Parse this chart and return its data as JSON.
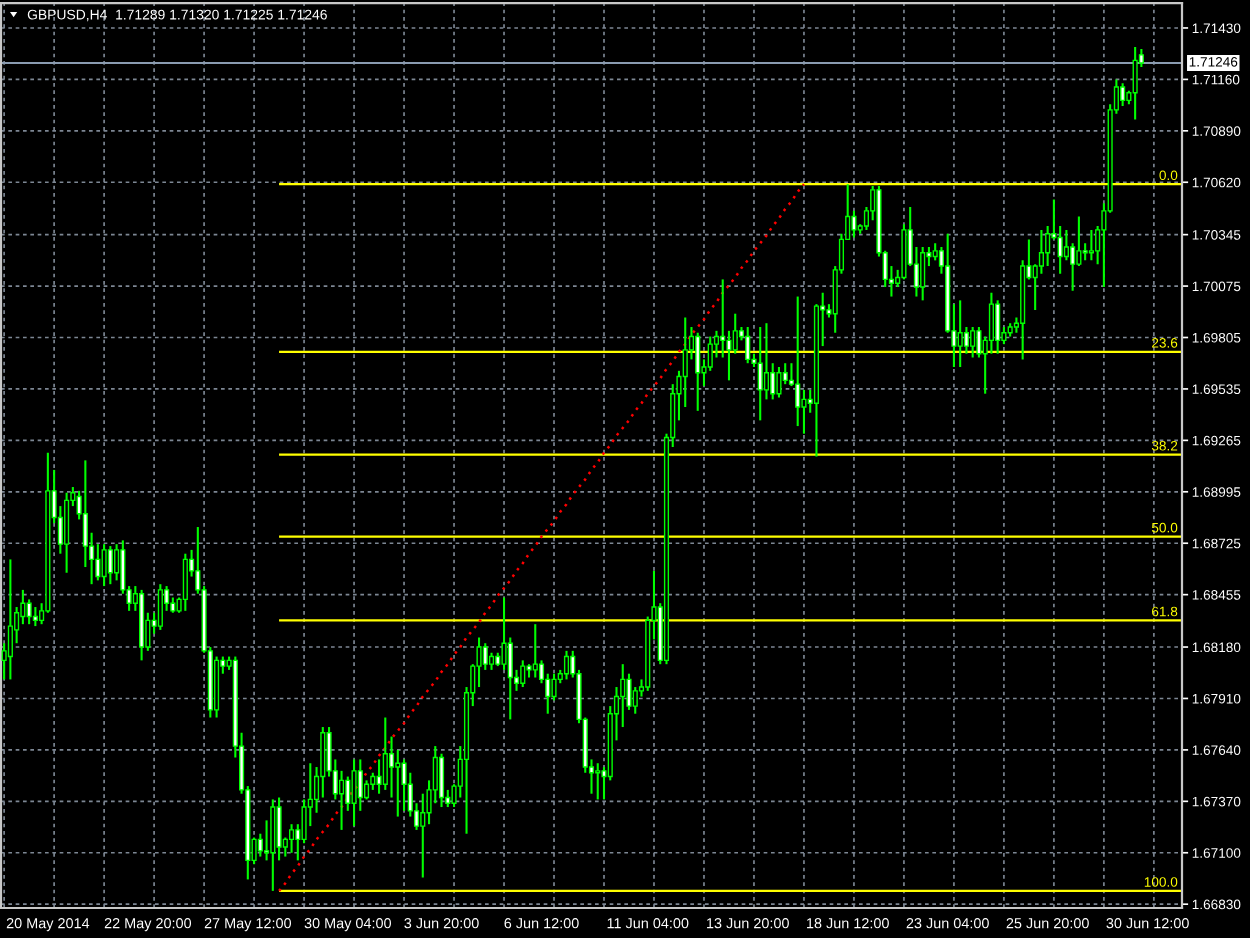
{
  "chart_data": {
    "type": "candlestick",
    "title": "GBPUSD,H4  1.71289 1.71320 1.71225 1.71246",
    "color": "#00ff00",
    "categories": [
      null,
      null,
      null,
      null,
      null,
      null,
      null,
      "20 May 2014",
      null,
      null,
      null,
      null,
      null,
      null,
      null,
      null,
      null,
      null,
      null,
      null,
      null,
      null,
      null,
      "22 May 20:00",
      null,
      null,
      null,
      null,
      null,
      null,
      null,
      null,
      null,
      null,
      null,
      null,
      null,
      null,
      null,
      "27 May 12:00",
      null,
      null,
      null,
      null,
      null,
      null,
      null,
      null,
      null,
      null,
      null,
      null,
      null,
      null,
      null,
      "30 May 04:00",
      null,
      null,
      null,
      null,
      null,
      null,
      null,
      null,
      null,
      null,
      null,
      null,
      null,
      null,
      "3 Jun 20:00",
      null,
      null,
      null,
      null,
      null,
      null,
      null,
      null,
      null,
      null,
      null,
      null,
      null,
      null,
      null,
      "6 Jun 12:00",
      null,
      null,
      null,
      null,
      null,
      null,
      null,
      null,
      null,
      null,
      null,
      null,
      null,
      null,
      null,
      null,
      "11 Jun 04:00",
      null,
      null,
      null,
      null,
      null,
      null,
      null,
      null,
      null,
      null,
      null,
      null,
      null,
      null,
      null,
      "13 Jun 20:00",
      null,
      null,
      null,
      null,
      null,
      null,
      null,
      null,
      null,
      null,
      null,
      null,
      null,
      null,
      null,
      "18 Jun 12:00",
      null,
      null,
      null,
      null,
      null,
      null,
      null,
      null,
      null,
      null,
      null,
      null,
      null,
      null,
      null,
      "23 Jun 04:00",
      null,
      null,
      null,
      null,
      null,
      null,
      null,
      null,
      null,
      null,
      null,
      null,
      null,
      null,
      null,
      "25 Jun 20:00",
      null,
      null,
      null,
      null,
      null,
      null,
      null,
      null,
      null,
      null,
      null,
      null,
      null,
      null,
      null,
      "30 Jun 12:00",
      null,
      null,
      null,
      null,
      null
    ],
    "ohlc": [
      [
        1.6811,
        1.682,
        1.6801,
        1.6816
      ],
      [
        1.6813,
        1.6864,
        1.6801,
        1.6829
      ],
      [
        1.6827,
        1.6839,
        1.682,
        1.6836
      ],
      [
        1.6834,
        1.6848,
        1.683,
        1.6841
      ],
      [
        1.6841,
        1.6843,
        1.683,
        1.6834
      ],
      [
        1.6834,
        1.6839,
        1.6829,
        1.6832
      ],
      [
        1.6832,
        1.6841,
        1.683,
        1.6837
      ],
      [
        1.6837,
        1.692,
        1.6836,
        1.69
      ],
      [
        1.69,
        1.6911,
        1.6883,
        1.6886
      ],
      [
        1.6886,
        1.6892,
        1.6867,
        1.6872
      ],
      [
        1.6872,
        1.6899,
        1.6857,
        1.6895
      ],
      [
        1.6895,
        1.6902,
        1.6892,
        1.6899
      ],
      [
        1.6897,
        1.69,
        1.6885,
        1.6888
      ],
      [
        1.6888,
        1.6916,
        1.686,
        1.6871
      ],
      [
        1.6871,
        1.6878,
        1.6851,
        1.6864
      ],
      [
        1.6864,
        1.6872,
        1.6853,
        1.6855
      ],
      [
        1.6855,
        1.6872,
        1.685,
        1.6869
      ],
      [
        1.6869,
        1.6871,
        1.6851,
        1.6857
      ],
      [
        1.6857,
        1.6872,
        1.6853,
        1.6869
      ],
      [
        1.6869,
        1.6874,
        1.6846,
        1.6848
      ],
      [
        1.6848,
        1.685,
        1.6837,
        1.6841
      ],
      [
        1.6841,
        1.685,
        1.6837,
        1.6846
      ],
      [
        1.6846,
        1.6848,
        1.6811,
        1.6818
      ],
      [
        1.6818,
        1.6836,
        1.6816,
        1.6832
      ],
      [
        1.6832,
        1.6836,
        1.6825,
        1.6829
      ],
      [
        1.6829,
        1.6851,
        1.6827,
        1.6848
      ],
      [
        1.6848,
        1.685,
        1.6837,
        1.6841
      ],
      [
        1.6841,
        1.6844,
        1.6836,
        1.6837
      ],
      [
        1.6837,
        1.6844,
        1.6836,
        1.6843
      ],
      [
        1.6843,
        1.6867,
        1.6837,
        1.6864
      ],
      [
        1.6864,
        1.6869,
        1.6855,
        1.6858
      ],
      [
        1.6858,
        1.6881,
        1.6846,
        1.6848
      ],
      [
        1.6848,
        1.685,
        1.6815,
        1.6816
      ],
      [
        1.6816,
        1.6818,
        1.6781,
        1.6785
      ],
      [
        1.6785,
        1.6813,
        1.6781,
        1.6811
      ],
      [
        1.6811,
        1.6813,
        1.6804,
        1.6808
      ],
      [
        1.6808,
        1.6813,
        1.6806,
        1.6811
      ],
      [
        1.6811,
        1.6813,
        1.676,
        1.6766
      ],
      [
        1.6766,
        1.6773,
        1.6741,
        1.6743
      ],
      [
        1.6743,
        1.6745,
        1.6696,
        1.6706
      ],
      [
        1.6706,
        1.6718,
        1.6704,
        1.6717
      ],
      [
        1.6717,
        1.672,
        1.6708,
        1.6711
      ],
      [
        1.6711,
        1.6727,
        1.6706,
        1.671
      ],
      [
        1.671,
        1.6738,
        1.669,
        1.6734
      ],
      [
        1.6734,
        1.6739,
        1.6706,
        1.6713
      ],
      [
        1.6713,
        1.6718,
        1.6708,
        1.6717
      ],
      [
        1.6717,
        1.6725,
        1.671,
        1.6722
      ],
      [
        1.6722,
        1.6725,
        1.6706,
        1.6717
      ],
      [
        1.6717,
        1.6738,
        1.6715,
        1.6734
      ],
      [
        1.6734,
        1.6757,
        1.6724,
        1.6738
      ],
      [
        1.6738,
        1.6755,
        1.6731,
        1.675
      ],
      [
        1.675,
        1.6776,
        1.6739,
        1.6773
      ],
      [
        1.6773,
        1.6776,
        1.675,
        1.6753
      ],
      [
        1.6753,
        1.6759,
        1.6738,
        1.6741
      ],
      [
        1.6741,
        1.6753,
        1.6722,
        1.6748
      ],
      [
        1.6748,
        1.675,
        1.6732,
        1.6736
      ],
      [
        1.6736,
        1.6759,
        1.6724,
        1.6753
      ],
      [
        1.6753,
        1.6759,
        1.6732,
        1.6739
      ],
      [
        1.6739,
        1.6748,
        1.6738,
        1.6746
      ],
      [
        1.6746,
        1.6752,
        1.6743,
        1.675
      ],
      [
        1.675,
        1.6759,
        1.6741,
        1.6746
      ],
      [
        1.6746,
        1.6781,
        1.6743,
        1.6762
      ],
      [
        1.6762,
        1.6771,
        1.6739,
        1.6755
      ],
      [
        1.6755,
        1.6764,
        1.6729,
        1.6757
      ],
      [
        1.6757,
        1.6759,
        1.6732,
        1.6746
      ],
      [
        1.6746,
        1.6752,
        1.6729,
        1.6732
      ],
      [
        1.6732,
        1.6736,
        1.6722,
        1.6724
      ],
      [
        1.6724,
        1.6741,
        1.6697,
        1.6731
      ],
      [
        1.6731,
        1.6748,
        1.6725,
        1.6743
      ],
      [
        1.6743,
        1.6766,
        1.6736,
        1.676
      ],
      [
        1.676,
        1.6762,
        1.6734,
        1.6739
      ],
      [
        1.6739,
        1.6743,
        1.6734,
        1.6736
      ],
      [
        1.6736,
        1.6746,
        1.6734,
        1.6745
      ],
      [
        1.6745,
        1.6766,
        1.6739,
        1.6759
      ],
      [
        1.6759,
        1.6797,
        1.672,
        1.6794
      ],
      [
        1.6794,
        1.6809,
        1.6787,
        1.6808
      ],
      [
        1.6808,
        1.6823,
        1.6797,
        1.6818
      ],
      [
        1.6818,
        1.682,
        1.6806,
        1.6809
      ],
      [
        1.6809,
        1.6815,
        1.6806,
        1.6813
      ],
      [
        1.6813,
        1.6815,
        1.6808,
        1.6809
      ],
      [
        1.6809,
        1.6844,
        1.6806,
        1.682
      ],
      [
        1.682,
        1.6823,
        1.678,
        1.6802
      ],
      [
        1.6802,
        1.6806,
        1.6795,
        1.6799
      ],
      [
        1.6799,
        1.6811,
        1.6797,
        1.6808
      ],
      [
        1.6808,
        1.6809,
        1.6802,
        1.6806
      ],
      [
        1.6806,
        1.683,
        1.6802,
        1.6809
      ],
      [
        1.6809,
        1.6811,
        1.6799,
        1.6801
      ],
      [
        1.6801,
        1.6804,
        1.6783,
        1.6792
      ],
      [
        1.6792,
        1.6804,
        1.679,
        1.6801
      ],
      [
        1.6801,
        1.6806,
        1.6799,
        1.6804
      ],
      [
        1.6804,
        1.6816,
        1.6801,
        1.6813
      ],
      [
        1.6813,
        1.6816,
        1.6802,
        1.6804
      ],
      [
        1.6804,
        1.6806,
        1.6778,
        1.678
      ],
      [
        1.678,
        1.6781,
        1.6752,
        1.6755
      ],
      [
        1.6755,
        1.6759,
        1.6741,
        1.6752
      ],
      [
        1.6752,
        1.6757,
        1.6738,
        1.6753
      ],
      [
        1.6753,
        1.6755,
        1.6738,
        1.675
      ],
      [
        1.675,
        1.6787,
        1.6748,
        1.6783
      ],
      [
        1.6783,
        1.6797,
        1.6769,
        1.6792
      ],
      [
        1.6792,
        1.6809,
        1.6776,
        1.6801
      ],
      [
        1.6801,
        1.6804,
        1.6785,
        1.6787
      ],
      [
        1.6787,
        1.6797,
        1.6783,
        1.6795
      ],
      [
        1.6795,
        1.6801,
        1.6792,
        1.6797
      ],
      [
        1.6797,
        1.6834,
        1.6795,
        1.6832
      ],
      [
        1.6832,
        1.6858,
        1.6822,
        1.6839
      ],
      [
        1.6839,
        1.6841,
        1.6809,
        1.6811
      ],
      [
        1.6811,
        1.693,
        1.6809,
        1.6928
      ],
      [
        1.6928,
        1.6956,
        1.6923,
        1.6951
      ],
      [
        1.6951,
        1.6963,
        1.6937,
        1.696
      ],
      [
        1.696,
        1.6991,
        1.6944,
        1.6974
      ],
      [
        1.6974,
        1.6986,
        1.6969,
        1.6981
      ],
      [
        1.6981,
        1.6983,
        1.6942,
        1.6962
      ],
      [
        1.6962,
        1.6969,
        1.6955,
        1.6965
      ],
      [
        1.6965,
        1.6981,
        1.6963,
        1.6977
      ],
      [
        1.6977,
        1.6984,
        1.697,
        1.6981
      ],
      [
        1.6981,
        1.7011,
        1.697,
        1.6979
      ],
      [
        1.6979,
        1.6984,
        1.6958,
        1.6974
      ],
      [
        1.6974,
        1.6993,
        1.6972,
        1.6984
      ],
      [
        1.6984,
        1.6986,
        1.6979,
        1.6981
      ],
      [
        1.6981,
        1.6986,
        1.6967,
        1.6969
      ],
      [
        1.6969,
        1.6972,
        1.6965,
        1.6967
      ],
      [
        1.6967,
        1.6986,
        1.6937,
        1.6953
      ],
      [
        1.6953,
        1.6988,
        1.6948,
        1.6962
      ],
      [
        1.6962,
        1.6967,
        1.6948,
        1.6951
      ],
      [
        1.6951,
        1.6965,
        1.6949,
        1.6962
      ],
      [
        1.6962,
        1.6967,
        1.6956,
        1.6958
      ],
      [
        1.6958,
        1.6967,
        1.6955,
        1.6956
      ],
      [
        1.6956,
        1.7002,
        1.6934,
        1.6944
      ],
      [
        1.6944,
        1.6953,
        1.693,
        1.6948
      ],
      [
        1.6948,
        1.6953,
        1.6941,
        1.6946
      ],
      [
        1.6946,
        1.6998,
        1.6918,
        1.6997
      ],
      [
        1.6997,
        1.7004,
        1.6976,
        1.6995
      ],
      [
        1.6995,
        1.6998,
        1.6991,
        1.6993
      ],
      [
        1.6993,
        1.7018,
        1.6983,
        1.7016
      ],
      [
        1.7016,
        1.7035,
        1.7014,
        1.7032
      ],
      [
        1.7032,
        1.7061,
        1.7032,
        1.7044
      ],
      [
        1.7044,
        1.7047,
        1.7033,
        1.7037
      ],
      [
        1.7037,
        1.704,
        1.7035,
        1.7039
      ],
      [
        1.7039,
        1.7049,
        1.7037,
        1.7047
      ],
      [
        1.7047,
        1.706,
        1.7042,
        1.7058
      ],
      [
        1.7058,
        1.706,
        1.7023,
        1.7025
      ],
      [
        1.7025,
        1.7026,
        1.7007,
        1.7011
      ],
      [
        1.7011,
        1.7018,
        1.7002,
        1.7009
      ],
      [
        1.7009,
        1.7016,
        1.7007,
        1.7012
      ],
      [
        1.7012,
        1.704,
        1.7011,
        1.7037
      ],
      [
        1.7037,
        1.7049,
        1.7018,
        1.7019
      ],
      [
        1.7019,
        1.7028,
        1.7002,
        1.7007
      ],
      [
        1.7007,
        1.7028,
        1.7,
        1.7025
      ],
      [
        1.7025,
        1.7028,
        1.7018,
        1.7023
      ],
      [
        1.7023,
        1.703,
        1.7021,
        1.7026
      ],
      [
        1.7026,
        1.7028,
        1.7014,
        1.7018
      ],
      [
        1.7018,
        1.7035,
        1.6983,
        1.6984
      ],
      [
        1.6984,
        1.6998,
        1.6965,
        1.6976
      ],
      [
        1.6976,
        1.7,
        1.6965,
        1.6983
      ],
      [
        1.6983,
        1.6986,
        1.6972,
        1.6976
      ],
      [
        1.6976,
        1.6986,
        1.697,
        1.6984
      ],
      [
        1.6984,
        1.6986,
        1.697,
        1.6972
      ],
      [
        1.6972,
        1.6981,
        1.6951,
        1.6979
      ],
      [
        1.6979,
        1.7004,
        1.6972,
        1.6998
      ],
      [
        1.6998,
        1.7,
        1.6972,
        1.6979
      ],
      [
        1.6979,
        1.6986,
        1.6977,
        1.6983
      ],
      [
        1.6983,
        1.6988,
        1.6981,
        1.6986
      ],
      [
        1.6986,
        1.6991,
        1.6983,
        1.6988
      ],
      [
        1.6988,
        1.7021,
        1.6969,
        1.7018
      ],
      [
        1.7018,
        1.7032,
        1.7011,
        1.7012
      ],
      [
        1.7012,
        1.7019,
        1.6995,
        1.7018
      ],
      [
        1.7018,
        1.7037,
        1.7014,
        1.7025
      ],
      [
        1.7025,
        1.7039,
        1.7018,
        1.7035
      ],
      [
        1.7035,
        1.7053,
        1.7032,
        1.7033
      ],
      [
        1.7033,
        1.7039,
        1.7014,
        1.7023
      ],
      [
        1.7023,
        1.7037,
        1.7021,
        1.7028
      ],
      [
        1.7028,
        1.703,
        1.7005,
        1.7019
      ],
      [
        1.7019,
        1.7044,
        1.7018,
        1.7026
      ],
      [
        1.7026,
        1.703,
        1.7021,
        1.7025
      ],
      [
        1.7025,
        1.7037,
        1.7021,
        1.7026
      ],
      [
        1.7026,
        1.7039,
        1.7019,
        1.7037
      ],
      [
        1.7037,
        1.7051,
        1.7007,
        1.7047
      ],
      [
        1.7047,
        1.7103,
        1.7046,
        1.71
      ],
      [
        1.71,
        1.7116,
        1.7098,
        1.7112
      ],
      [
        1.7112,
        1.7114,
        1.7102,
        1.7105
      ],
      [
        1.7105,
        1.711,
        1.7103,
        1.7109
      ],
      [
        1.7109,
        1.7133,
        1.7095,
        1.7126
      ],
      [
        1.71289,
        1.7132,
        1.71225,
        1.71246
      ],
      null,
      null,
      null,
      null,
      null,
      null
    ],
    "series": [
      {
        "type": "line",
        "color": "#ff0000",
        "line_style": "dotted",
        "values": [
          null,
          null,
          null,
          null,
          null,
          null,
          null,
          null,
          null,
          null,
          null,
          null,
          null,
          null,
          null,
          null,
          null,
          null,
          null,
          null,
          null,
          null,
          null,
          null,
          null,
          null,
          null,
          null,
          null,
          null,
          null,
          null,
          null,
          null,
          null,
          null,
          null,
          null,
          null,
          null,
          null,
          null,
          null,
          null,
          1.669,
          1.6694,
          1.6699,
          1.6703,
          1.6708,
          1.6712,
          1.6717,
          1.6721,
          1.6725,
          1.673,
          1.6734,
          1.6739,
          1.6743,
          1.6747,
          1.6752,
          1.6756,
          1.6761,
          1.6765,
          1.677,
          1.6774,
          1.6778,
          1.6783,
          1.6787,
          1.6792,
          1.6796,
          1.68,
          1.6805,
          1.6809,
          1.6814,
          1.6818,
          1.6823,
          1.6827,
          1.6831,
          1.6836,
          1.684,
          1.6845,
          1.6849,
          1.6853,
          1.6858,
          1.6862,
          1.6867,
          1.6871,
          1.6876,
          1.688,
          1.6884,
          1.6889,
          1.6893,
          1.6898,
          1.6902,
          1.6906,
          1.6911,
          1.6915,
          1.692,
          1.6924,
          1.6929,
          1.6933,
          1.6937,
          1.6942,
          1.6946,
          1.6951,
          1.6955,
          1.6959,
          1.6964,
          1.6968,
          1.6973,
          1.6977,
          1.6982,
          1.6986,
          1.699,
          1.6995,
          1.6999,
          1.7004,
          1.7008,
          1.7012,
          1.7017,
          1.7021,
          1.7026,
          1.703,
          1.7034,
          1.7039,
          1.7043,
          1.7048,
          1.7052,
          1.7057,
          1.7061,
          null,
          null,
          null,
          null,
          null,
          null,
          null,
          null,
          null,
          null,
          null,
          null,
          null,
          null,
          null,
          null,
          null,
          null,
          null,
          null,
          null,
          null,
          null,
          null,
          null,
          null,
          null,
          null,
          null,
          null,
          null,
          null,
          null,
          null,
          null,
          null,
          null,
          null,
          null,
          null,
          null,
          null,
          null,
          null,
          null,
          null,
          null,
          null,
          null,
          null,
          null,
          null,
          null,
          null,
          null,
          null,
          null,
          null,
          null,
          null
        ]
      }
    ],
    "ref_lines": [
      {
        "axis": "y",
        "value": 1.71246,
        "label": "1.71246",
        "color": "#8a9bb0"
      },
      {
        "axis": "y",
        "value": 1.7061,
        "color": "#ffff00"
      },
      {
        "axis": "y",
        "value": 1.6973,
        "color": "#ffff00"
      },
      {
        "axis": "y",
        "value": 1.6919,
        "color": "#ffff00"
      },
      {
        "axis": "y",
        "value": 1.6876,
        "color": "#ffff00"
      },
      {
        "axis": "y",
        "value": 1.6832,
        "color": "#ffff00"
      },
      {
        "axis": "y",
        "value": 1.669,
        "color": "#ffff00"
      }
    ],
    "annotations": [
      {
        "text": "0.0",
        "y": 1.7061
      },
      {
        "text": "23.6",
        "y": 1.6973
      },
      {
        "text": "38.2",
        "y": 1.6919
      },
      {
        "text": "50.0",
        "y": 1.6876
      },
      {
        "text": "61.8",
        "y": 1.6832
      },
      {
        "text": "100.0",
        "y": 1.669
      }
    ],
    "ylim": [
      1.6681,
      1.7156
    ],
    "yticks": [
      {
        "value": 1.7143,
        "label": "1.71430"
      },
      {
        "value": 1.7116,
        "label": "1.71160"
      },
      {
        "value": 1.7089,
        "label": "1.70890"
      },
      {
        "value": 1.7062,
        "label": "1.70620"
      },
      {
        "value": 1.70345,
        "label": "1.70345"
      },
      {
        "value": 1.70075,
        "label": "1.70075"
      },
      {
        "value": 1.69805,
        "label": "1.69805"
      },
      {
        "value": 1.69535,
        "label": "1.69535"
      },
      {
        "value": 1.69265,
        "label": "1.69265"
      },
      {
        "value": 1.68995,
        "label": "1.68995"
      },
      {
        "value": 1.68725,
        "label": "1.68725"
      },
      {
        "value": 1.68455,
        "label": "1.68455"
      },
      {
        "value": 1.6818,
        "label": "1.68180"
      },
      {
        "value": 1.6791,
        "label": "1.67910"
      },
      {
        "value": 1.6764,
        "label": "1.67640"
      },
      {
        "value": 1.6737,
        "label": "1.67370"
      },
      {
        "value": 1.671,
        "label": "1.67100"
      },
      {
        "value": 1.6683,
        "label": "1.66830"
      }
    ],
    "grid": true
  }
}
